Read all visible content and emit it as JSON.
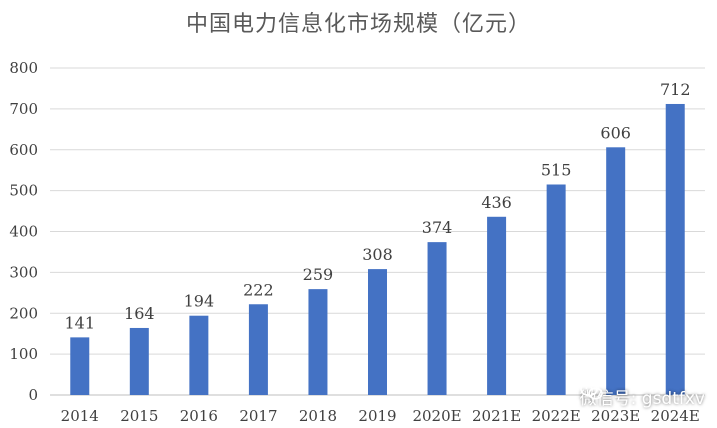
{
  "chart_data": {
    "type": "bar",
    "title": "中国电力信息化市场规模（亿元）",
    "categories": [
      "2014",
      "2015",
      "2016",
      "2017",
      "2018",
      "2019",
      "2020E",
      "2021E",
      "2022E",
      "2023E",
      "2024E"
    ],
    "values": [
      141,
      164,
      194,
      222,
      259,
      308,
      374,
      436,
      515,
      606,
      712
    ],
    "xlabel": "",
    "ylabel": "",
    "ylim": [
      0,
      800
    ],
    "yticks": [
      0,
      100,
      200,
      300,
      400,
      500,
      600,
      700,
      800
    ],
    "grid": true,
    "legend": "none",
    "bar_color": "#4472C4"
  },
  "watermark": {
    "text": "微信号: gsdtfxv",
    "icon": "wechat-icon"
  }
}
